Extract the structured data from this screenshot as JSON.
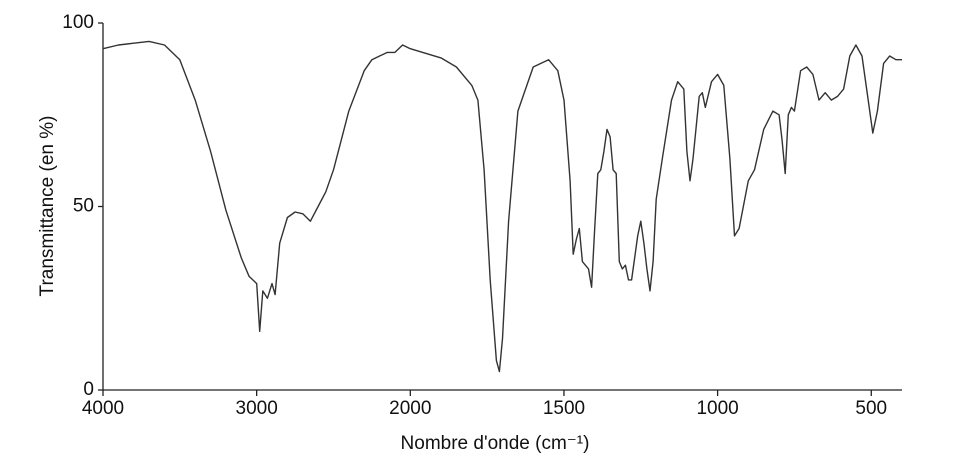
{
  "chart_data": {
    "type": "line",
    "xlabel": "Nombre d'onde (cm⁻¹)",
    "ylabel": "Transmittance (en %)",
    "xlim": [
      4000,
      400
    ],
    "xticks": [
      4000,
      3000,
      2000,
      1500,
      1000,
      500
    ],
    "xscale": {
      "break": 2000,
      "ratio": 2
    },
    "ylim": [
      0,
      100
    ],
    "yticks": [
      0,
      50,
      100
    ],
    "grid": false,
    "series": [
      {
        "name": null,
        "color": "#333333",
        "x": [
          4000,
          3900,
          3800,
          3700,
          3600,
          3500,
          3400,
          3300,
          3200,
          3100,
          3050,
          3000,
          2980,
          2960,
          2930,
          2900,
          2880,
          2850,
          2800,
          2750,
          2700,
          2650,
          2600,
          2550,
          2500,
          2400,
          2300,
          2250,
          2200,
          2150,
          2100,
          2050,
          2000,
          1900,
          1850,
          1800,
          1780,
          1760,
          1740,
          1720,
          1710,
          1700,
          1680,
          1650,
          1600,
          1550,
          1520,
          1500,
          1480,
          1470,
          1460,
          1450,
          1440,
          1420,
          1410,
          1400,
          1390,
          1380,
          1370,
          1360,
          1350,
          1340,
          1330,
          1320,
          1310,
          1300,
          1290,
          1280,
          1260,
          1250,
          1240,
          1230,
          1220,
          1210,
          1200,
          1180,
          1150,
          1130,
          1110,
          1100,
          1090,
          1080,
          1060,
          1050,
          1040,
          1020,
          1000,
          980,
          960,
          945,
          930,
          900,
          880,
          850,
          820,
          800,
          790,
          780,
          770,
          760,
          750,
          730,
          710,
          690,
          670,
          650,
          630,
          610,
          590,
          570,
          550,
          530,
          510,
          495,
          480,
          460,
          440,
          420,
          400
        ],
        "values": [
          93,
          94,
          94.5,
          95,
          94,
          90,
          79,
          65,
          49,
          36,
          31,
          29,
          16,
          27,
          25,
          29,
          26,
          40,
          47,
          48.5,
          48,
          46,
          50,
          54,
          60,
          76,
          87,
          90,
          91,
          92,
          92,
          94,
          93,
          90.5,
          88,
          83,
          79,
          60,
          30,
          8,
          5,
          14,
          46,
          76,
          88,
          90,
          87,
          79,
          57,
          37,
          41,
          44,
          35,
          33,
          28,
          44,
          59,
          60,
          65,
          71,
          69,
          60,
          59,
          35,
          33,
          34,
          30,
          30,
          42,
          46,
          40,
          33,
          27,
          35,
          52,
          63,
          79,
          84,
          82,
          65,
          57,
          63,
          80,
          81,
          77,
          84,
          86,
          83,
          63,
          42,
          44,
          57,
          60,
          71,
          76,
          75,
          68,
          59,
          75,
          77,
          76,
          87,
          88,
          86,
          79,
          81,
          79,
          80,
          82,
          91,
          94,
          91,
          79,
          70,
          76,
          89,
          91,
          90,
          90
        ]
      }
    ]
  }
}
